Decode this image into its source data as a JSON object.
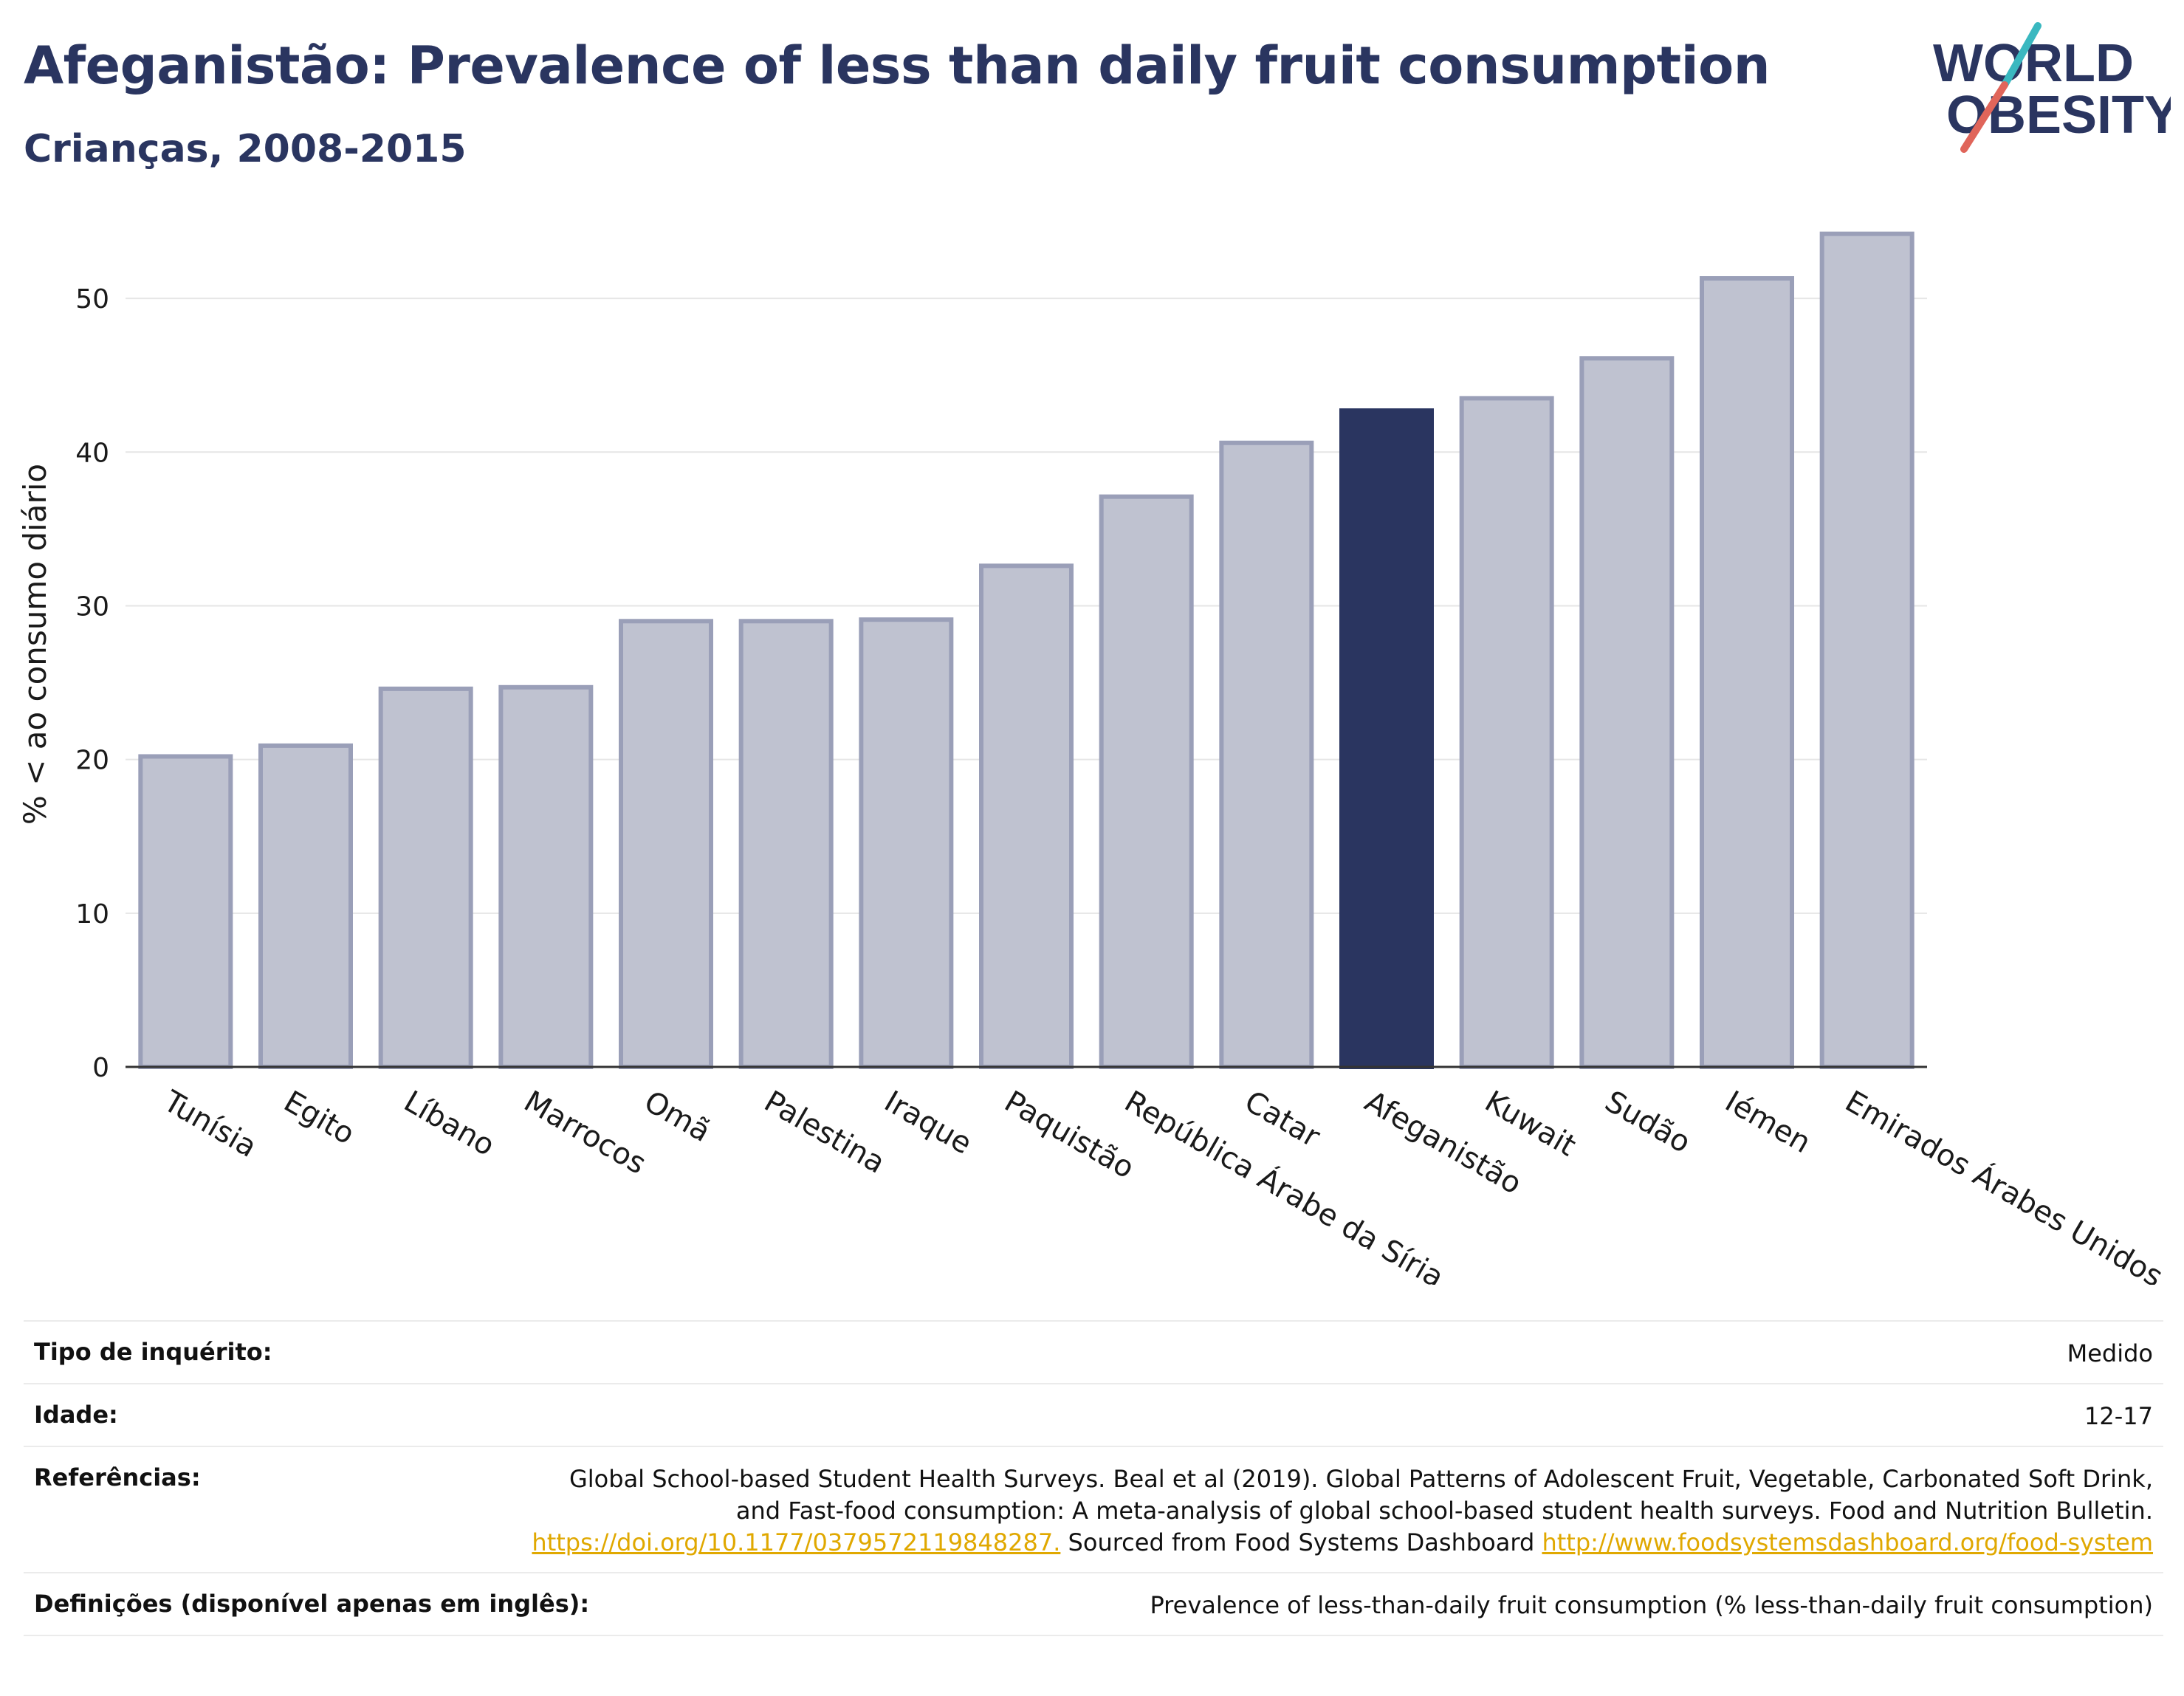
{
  "header": {
    "title": "Afeganistão: Prevalence of less than daily fruit consumption",
    "subtitle": "Crianças, 2008-2015"
  },
  "logo": {
    "line1": "WORLD",
    "line2": "OBESITY",
    "colors": {
      "text": "#2a3560",
      "slash_top": "#3ab8c0",
      "slash_bottom": "#e0655a"
    }
  },
  "chart_data": {
    "type": "bar",
    "title": "",
    "xlabel": "",
    "ylabel": "% < ao consumo diário",
    "ylim": [
      0,
      55
    ],
    "yticks": [
      0,
      10,
      20,
      30,
      40,
      50
    ],
    "grid": true,
    "highlight": "Afeganistão",
    "colors": {
      "bar": "#bfc2d0",
      "bar_edge": "#9a9fb8",
      "highlight": "#2a3560"
    },
    "categories": [
      "Tunísia",
      "Egito",
      "Líbano",
      "Marrocos",
      "Omã",
      "Palestina",
      "Iraque",
      "Paquistão",
      "República Árabe da Síria",
      "Catar",
      "Afeganistão",
      "Kuwait",
      "Sudão",
      "Iémen",
      "Emirados Árabes Unidos"
    ],
    "values": [
      20.2,
      20.9,
      24.6,
      24.7,
      29.0,
      29.0,
      29.1,
      32.6,
      37.1,
      40.6,
      42.7,
      43.5,
      46.1,
      51.3,
      54.2
    ]
  },
  "metadata": {
    "rows": [
      {
        "key": "Tipo de inquérito:",
        "value": "Medido"
      },
      {
        "key": "Idade:",
        "value": "12-17"
      },
      {
        "key": "Referências:",
        "text1": "Global School-based Student Health Surveys. Beal et al (2019). Global Patterns of Adolescent Fruit, Vegetable, Carbonated Soft Drink, and Fast-food consumption: A meta-analysis of global school-based student health surveys. Food and Nutrition Bulletin.",
        "link1": "https://doi.org/10.1177/0379572119848287.",
        "text2": "Sourced from Food Systems Dashboard",
        "link2": "http://www.foodsystemsdashboard.org/food-system"
      },
      {
        "key": "Definições (disponível apenas em inglês):",
        "value": "Prevalence of less-than-daily fruit consumption (% less-than-daily fruit consumption)"
      }
    ]
  }
}
